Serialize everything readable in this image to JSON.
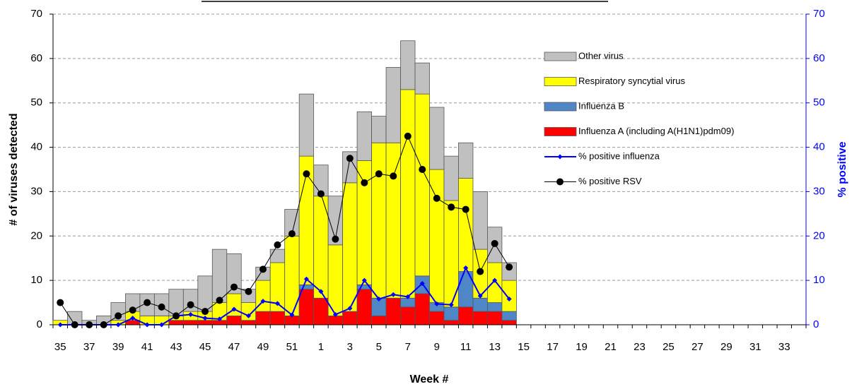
{
  "chart_data": {
    "type": "bar",
    "x_label": "Week #",
    "y_label": "# of viruses detected",
    "y2_label": "% positive",
    "categories": [
      35,
      null,
      37,
      null,
      39,
      null,
      41,
      null,
      43,
      null,
      45,
      null,
      47,
      null,
      49,
      null,
      51,
      null,
      1,
      null,
      3,
      null,
      5,
      null,
      7,
      null,
      9,
      null,
      11,
      null,
      13,
      null,
      15,
      null,
      17,
      null,
      19,
      null,
      21,
      null,
      23,
      null,
      25,
      null,
      27,
      null,
      29,
      null,
      31,
      null,
      33,
      null
    ],
    "ylim": [
      0,
      70
    ],
    "yticks": [
      0,
      10,
      20,
      30,
      40,
      50,
      60,
      70
    ],
    "y2lim": [
      0,
      70
    ],
    "y2ticks": [
      0,
      10,
      20,
      30,
      40,
      50,
      60,
      70
    ],
    "grid": true,
    "stacked": true,
    "legend": "upper right",
    "series": [
      {
        "name": "Other virus",
        "type": "bar",
        "color": "#c0c0c0",
        "values": [
          0,
          3,
          1,
          2,
          4,
          4,
          5,
          5,
          6,
          5,
          8,
          12,
          9,
          3,
          3,
          3,
          6,
          14,
          7,
          11,
          7,
          11,
          6,
          17,
          11,
          7,
          14,
          10,
          8,
          13,
          8,
          4,
          null,
          null,
          null,
          null,
          null,
          null,
          null,
          null,
          null,
          null,
          null,
          null,
          null,
          null,
          null,
          null,
          null,
          null,
          null,
          null
        ]
      },
      {
        "name": "Respiratory syncytial virus",
        "type": "bar",
        "color": "#ffff00",
        "values": [
          1,
          0,
          0,
          0,
          1,
          2,
          2,
          2,
          1,
          2,
          2,
          4,
          5,
          4,
          7,
          11,
          18,
          29,
          23,
          16,
          29,
          28,
          35,
          35,
          47,
          41,
          30,
          24,
          21,
          11,
          9,
          7,
          null,
          null,
          null,
          null,
          null,
          null,
          null,
          null,
          null,
          null,
          null,
          null,
          null,
          null,
          null,
          null,
          null,
          null,
          null,
          null
        ]
      },
      {
        "name": "Influenza B",
        "type": "bar",
        "color": "#4f86c6",
        "values": [
          0,
          0,
          0,
          0,
          0,
          0,
          0,
          0,
          0,
          0,
          0,
          0,
          0,
          0,
          0,
          0,
          0,
          1,
          0,
          0,
          0,
          1,
          4,
          0,
          2,
          4,
          2,
          3,
          8,
          3,
          2,
          2,
          null,
          null,
          null,
          null,
          null,
          null,
          null,
          null,
          null,
          null,
          null,
          null,
          null,
          null,
          null,
          null,
          null,
          null,
          null,
          null
        ]
      },
      {
        "name": "Influenza A (including A(H1N1)pdm09)",
        "type": "bar",
        "color": "#ff0000",
        "values": [
          0,
          0,
          0,
          0,
          0,
          1,
          0,
          0,
          1,
          1,
          1,
          1,
          2,
          1,
          3,
          3,
          2,
          8,
          6,
          2,
          3,
          8,
          2,
          6,
          4,
          7,
          3,
          1,
          4,
          3,
          3,
          1,
          null,
          null,
          null,
          null,
          null,
          null,
          null,
          null,
          null,
          null,
          null,
          null,
          null,
          null,
          null,
          null,
          null,
          null,
          null,
          null
        ]
      },
      {
        "name": "% positive influenza",
        "type": "line",
        "axis": "y2",
        "color": "#0000ff",
        "marker": "diamond",
        "values": [
          0,
          0,
          0,
          0,
          0,
          1.5,
          0,
          0,
          2,
          2.3,
          1.5,
          1.3,
          3.5,
          2,
          5.3,
          4.8,
          2.2,
          10.3,
          7.5,
          2.3,
          3.7,
          10,
          5.8,
          6.8,
          6.3,
          9.3,
          4.7,
          4.5,
          12.8,
          6.5,
          10,
          5.8,
          null,
          null,
          null,
          null,
          null,
          null,
          null,
          null,
          null,
          null,
          null,
          null,
          null,
          null,
          null,
          null,
          null,
          null,
          null,
          null
        ]
      },
      {
        "name": "% positive RSV",
        "type": "line",
        "axis": "y2",
        "color": "#000000",
        "marker": "circle",
        "values": [
          5,
          0,
          0,
          0,
          2,
          3.3,
          5,
          4,
          2,
          4.5,
          3,
          5.5,
          8.5,
          7.5,
          12.5,
          18,
          20.5,
          34,
          29.5,
          19.3,
          37.5,
          32,
          34,
          33.5,
          42.5,
          35,
          28.5,
          26.5,
          26,
          12,
          18.3,
          13,
          null,
          null,
          null,
          null,
          null,
          null,
          null,
          null,
          null,
          null,
          null,
          null,
          null,
          null,
          null,
          null,
          null,
          null,
          null,
          null
        ]
      }
    ]
  }
}
